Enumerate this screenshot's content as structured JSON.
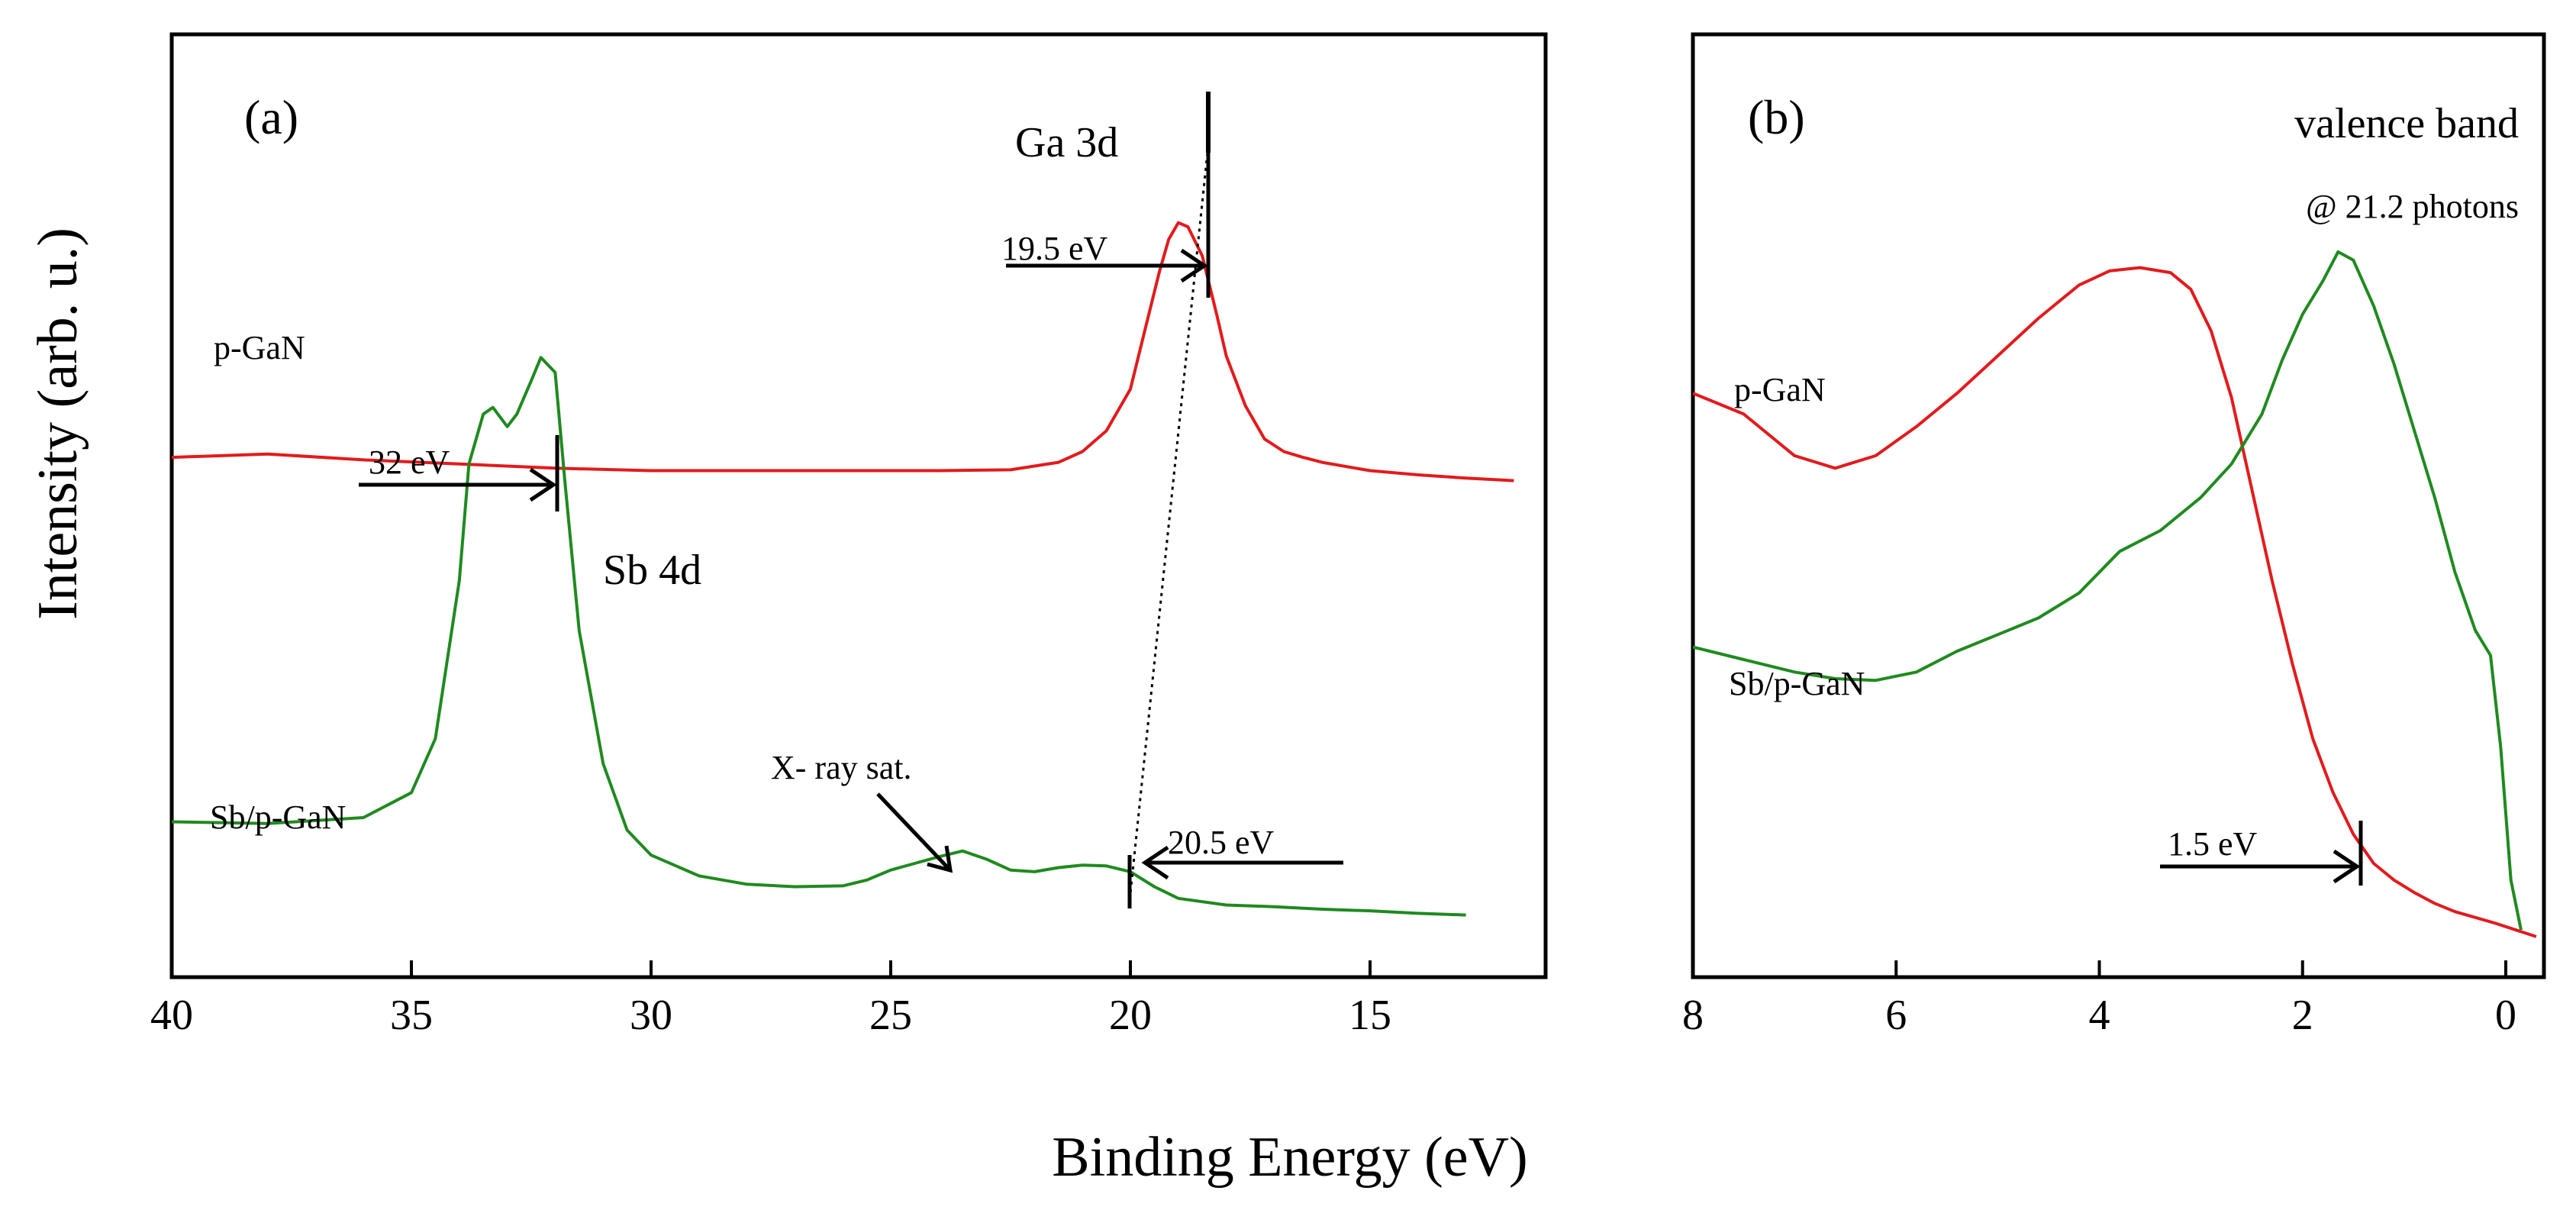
{
  "chart_data": [
    {
      "panel": "(a)",
      "type": "line",
      "xlabel": "Binding Energy (eV)",
      "ylabel": "Intensity (arb. u.)",
      "xlim": [
        40,
        12
      ],
      "ylim": [
        0,
        1
      ],
      "xticks": [
        "40",
        "35",
        "30",
        "25",
        "20",
        "15"
      ],
      "series": [
        {
          "name": "p-GaN",
          "color": "#e31a1c",
          "x": [
            40,
            38,
            36,
            34,
            32,
            30,
            28,
            26,
            24,
            22.5,
            21.5,
            21,
            20.5,
            20,
            19.7,
            19.4,
            19.2,
            19.0,
            18.8,
            18.5,
            18.2,
            18.0,
            17.6,
            17.2,
            16.8,
            16.4,
            16,
            15,
            14,
            13,
            12
          ],
          "y": [
            0.588,
            0.592,
            0.585,
            0.58,
            0.575,
            0.572,
            0.572,
            0.572,
            0.572,
            0.573,
            0.582,
            0.595,
            0.62,
            0.67,
            0.74,
            0.81,
            0.85,
            0.87,
            0.865,
            0.83,
            0.76,
            0.71,
            0.65,
            0.61,
            0.595,
            0.588,
            0.582,
            0.572,
            0.567,
            0.563,
            0.56
          ]
        },
        {
          "name": "Sb/p-GaN",
          "color": "#1f8a1f",
          "x": [
            40,
            38,
            36,
            35,
            34.5,
            34,
            33.8,
            33.5,
            33.3,
            33.0,
            32.8,
            32.5,
            32.3,
            32.0,
            31.8,
            31.5,
            31.0,
            30.5,
            30,
            29,
            28,
            27,
            26,
            25.5,
            25,
            24.5,
            24,
            23.5,
            23,
            22.5,
            22,
            21.5,
            21,
            20.5,
            20,
            19.5,
            19,
            18,
            17,
            16,
            15,
            14,
            13
          ],
          "y": [
            0.15,
            0.148,
            0.155,
            0.185,
            0.25,
            0.44,
            0.58,
            0.64,
            0.648,
            0.625,
            0.64,
            0.68,
            0.708,
            0.69,
            0.56,
            0.38,
            0.22,
            0.14,
            0.11,
            0.085,
            0.075,
            0.072,
            0.073,
            0.08,
            0.092,
            0.1,
            0.108,
            0.115,
            0.105,
            0.092,
            0.09,
            0.095,
            0.098,
            0.097,
            0.09,
            0.072,
            0.058,
            0.05,
            0.048,
            0.045,
            0.043,
            0.04,
            0.038
          ]
        }
      ],
      "annotations": {
        "panel_label": "(a)",
        "ga3d": "Ga 3d",
        "ga3d_shift": "19.5 eV",
        "sb4d": "Sb 4d",
        "sb4d_shift": "32 eV",
        "xray_sat": "X- ray  sat.",
        "lower_shift": "20.5 eV",
        "series_label_top": "p-GaN",
        "series_label_bottom": "Sb/p-GaN"
      }
    },
    {
      "panel": "(b)",
      "type": "line",
      "xlabel": "Binding Energy (eV)",
      "xlim": [
        8,
        -0.3
      ],
      "ylim": [
        0,
        1
      ],
      "xticks": [
        "8",
        "6",
        "4",
        "2",
        "0"
      ],
      "series": [
        {
          "name": "p-GaN",
          "color": "#e31a1c",
          "x": [
            8,
            7.5,
            7.0,
            6.6,
            6.2,
            5.8,
            5.4,
            5.0,
            4.6,
            4.2,
            3.9,
            3.6,
            3.3,
            3.1,
            2.9,
            2.7,
            2.5,
            2.3,
            2.1,
            1.9,
            1.7,
            1.5,
            1.3,
            1.1,
            0.9,
            0.7,
            0.5,
            0.3,
            0.1,
            -0.1,
            -0.3
          ],
          "y": [
            0.665,
            0.64,
            0.59,
            0.575,
            0.59,
            0.625,
            0.665,
            0.71,
            0.755,
            0.795,
            0.812,
            0.816,
            0.81,
            0.79,
            0.74,
            0.66,
            0.55,
            0.44,
            0.34,
            0.25,
            0.185,
            0.135,
            0.1,
            0.08,
            0.065,
            0.052,
            0.042,
            0.035,
            0.028,
            0.02,
            0.012
          ]
        },
        {
          "name": "Sb/p-GaN",
          "color": "#1f8a1f",
          "x": [
            8,
            7.5,
            7.0,
            6.6,
            6.2,
            5.8,
            5.4,
            5.0,
            4.6,
            4.2,
            3.8,
            3.4,
            3.0,
            2.7,
            2.4,
            2.2,
            2.0,
            1.8,
            1.65,
            1.5,
            1.3,
            1.1,
            0.9,
            0.7,
            0.5,
            0.3,
            0.15,
            0.05,
            -0.05,
            -0.15
          ],
          "y": [
            0.36,
            0.345,
            0.33,
            0.322,
            0.32,
            0.33,
            0.355,
            0.375,
            0.395,
            0.425,
            0.475,
            0.5,
            0.54,
            0.58,
            0.64,
            0.705,
            0.76,
            0.8,
            0.835,
            0.825,
            0.77,
            0.7,
            0.62,
            0.54,
            0.45,
            0.38,
            0.35,
            0.24,
            0.08,
            0.02
          ]
        }
      ],
      "annotations": {
        "panel_label": "(b)",
        "valence_band": "valence band",
        "photons": "@ 21.2 photons",
        "vb_shift": "1.5 eV",
        "series_label_top": "p-GaN",
        "series_label_bottom": "Sb/p-GaN"
      }
    }
  ]
}
